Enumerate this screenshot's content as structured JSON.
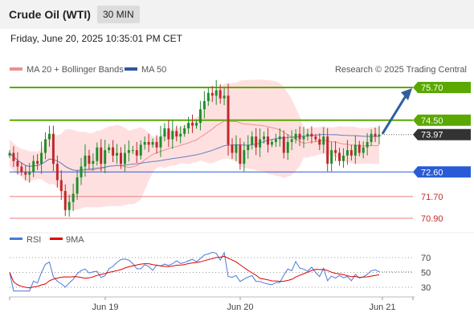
{
  "header": {
    "title": "Crude Oil (WTI)",
    "timeframe": "30 MIN"
  },
  "datetime": "Friday, June 20, 2025 10:35:01 PM CET",
  "legend": {
    "bb": "MA 20 + Bollinger Bands",
    "ma50": "MA 50",
    "credit": "Research © 2025 Trading Central"
  },
  "rsi_legend": {
    "rsi": "RSI",
    "ma9": "9MA"
  },
  "colors": {
    "resistance": "#5aa800",
    "pivot": "#2a5bd7",
    "support": "#e97b7b",
    "up": "#1e8f2a",
    "down": "#c0282b",
    "bollinger": "#ffd6d6",
    "ma50": "#6a7fc4",
    "last": "#333333",
    "arrow": "#2f5f9e"
  },
  "chart_data": [
    {
      "type": "candlestick",
      "title": "",
      "levels": [
        {
          "value": 75.7,
          "label": "75.70",
          "kind": "resistance"
        },
        {
          "value": 74.5,
          "label": "74.50",
          "kind": "resistance"
        },
        {
          "value": 73.97,
          "label": "73.97",
          "kind": "last"
        },
        {
          "value": 72.6,
          "label": "72.60",
          "kind": "pivot"
        },
        {
          "value": 71.7,
          "label": "71.70",
          "kind": "support"
        },
        {
          "value": 70.9,
          "label": "70.90",
          "kind": "support"
        }
      ],
      "x_ticks": [
        "Jun 19",
        "Jun 20",
        "Jun 21"
      ],
      "series": [
        {
          "name": "MA 20 + Bollinger Bands"
        },
        {
          "name": "MA 50"
        }
      ],
      "close": [
        73.3,
        73.0,
        72.8,
        72.6,
        72.5,
        72.6,
        73.0,
        72.9,
        73.3,
        73.8,
        74.0,
        72.9,
        72.3,
        71.9,
        71.2,
        71.5,
        71.8,
        72.4,
        72.8,
        73.2,
        72.9,
        73.0,
        73.5,
        72.9,
        73.4,
        73.5,
        73.2,
        73.3,
        72.9,
        73.3,
        73.4,
        73.4,
        73.2,
        73.6,
        73.7,
        73.6,
        73.7,
        73.5,
        73.9,
        74.2,
        73.8,
        74.1,
        73.9,
        74.0,
        74.2,
        74.4,
        74.3,
        74.4,
        74.9,
        75.2,
        75.5,
        75.4,
        75.6,
        75.3,
        75.4,
        73.6,
        73.3,
        73.6,
        72.9,
        73.4,
        73.6,
        73.9,
        73.5,
        73.8,
        73.9,
        73.6,
        73.7,
        73.8,
        73.9,
        73.3,
        73.7,
        73.8,
        74.0,
        73.8,
        73.9,
        74.0,
        73.9,
        73.8,
        73.6,
        73.9,
        72.9,
        73.4,
        73.3,
        73.0,
        73.2,
        73.4,
        73.2,
        73.6,
        73.3,
        73.5,
        73.7,
        74.0,
        73.9,
        73.97
      ],
      "rsi": {
        "levels": [
          30,
          50,
          70
        ]
      }
    }
  ]
}
